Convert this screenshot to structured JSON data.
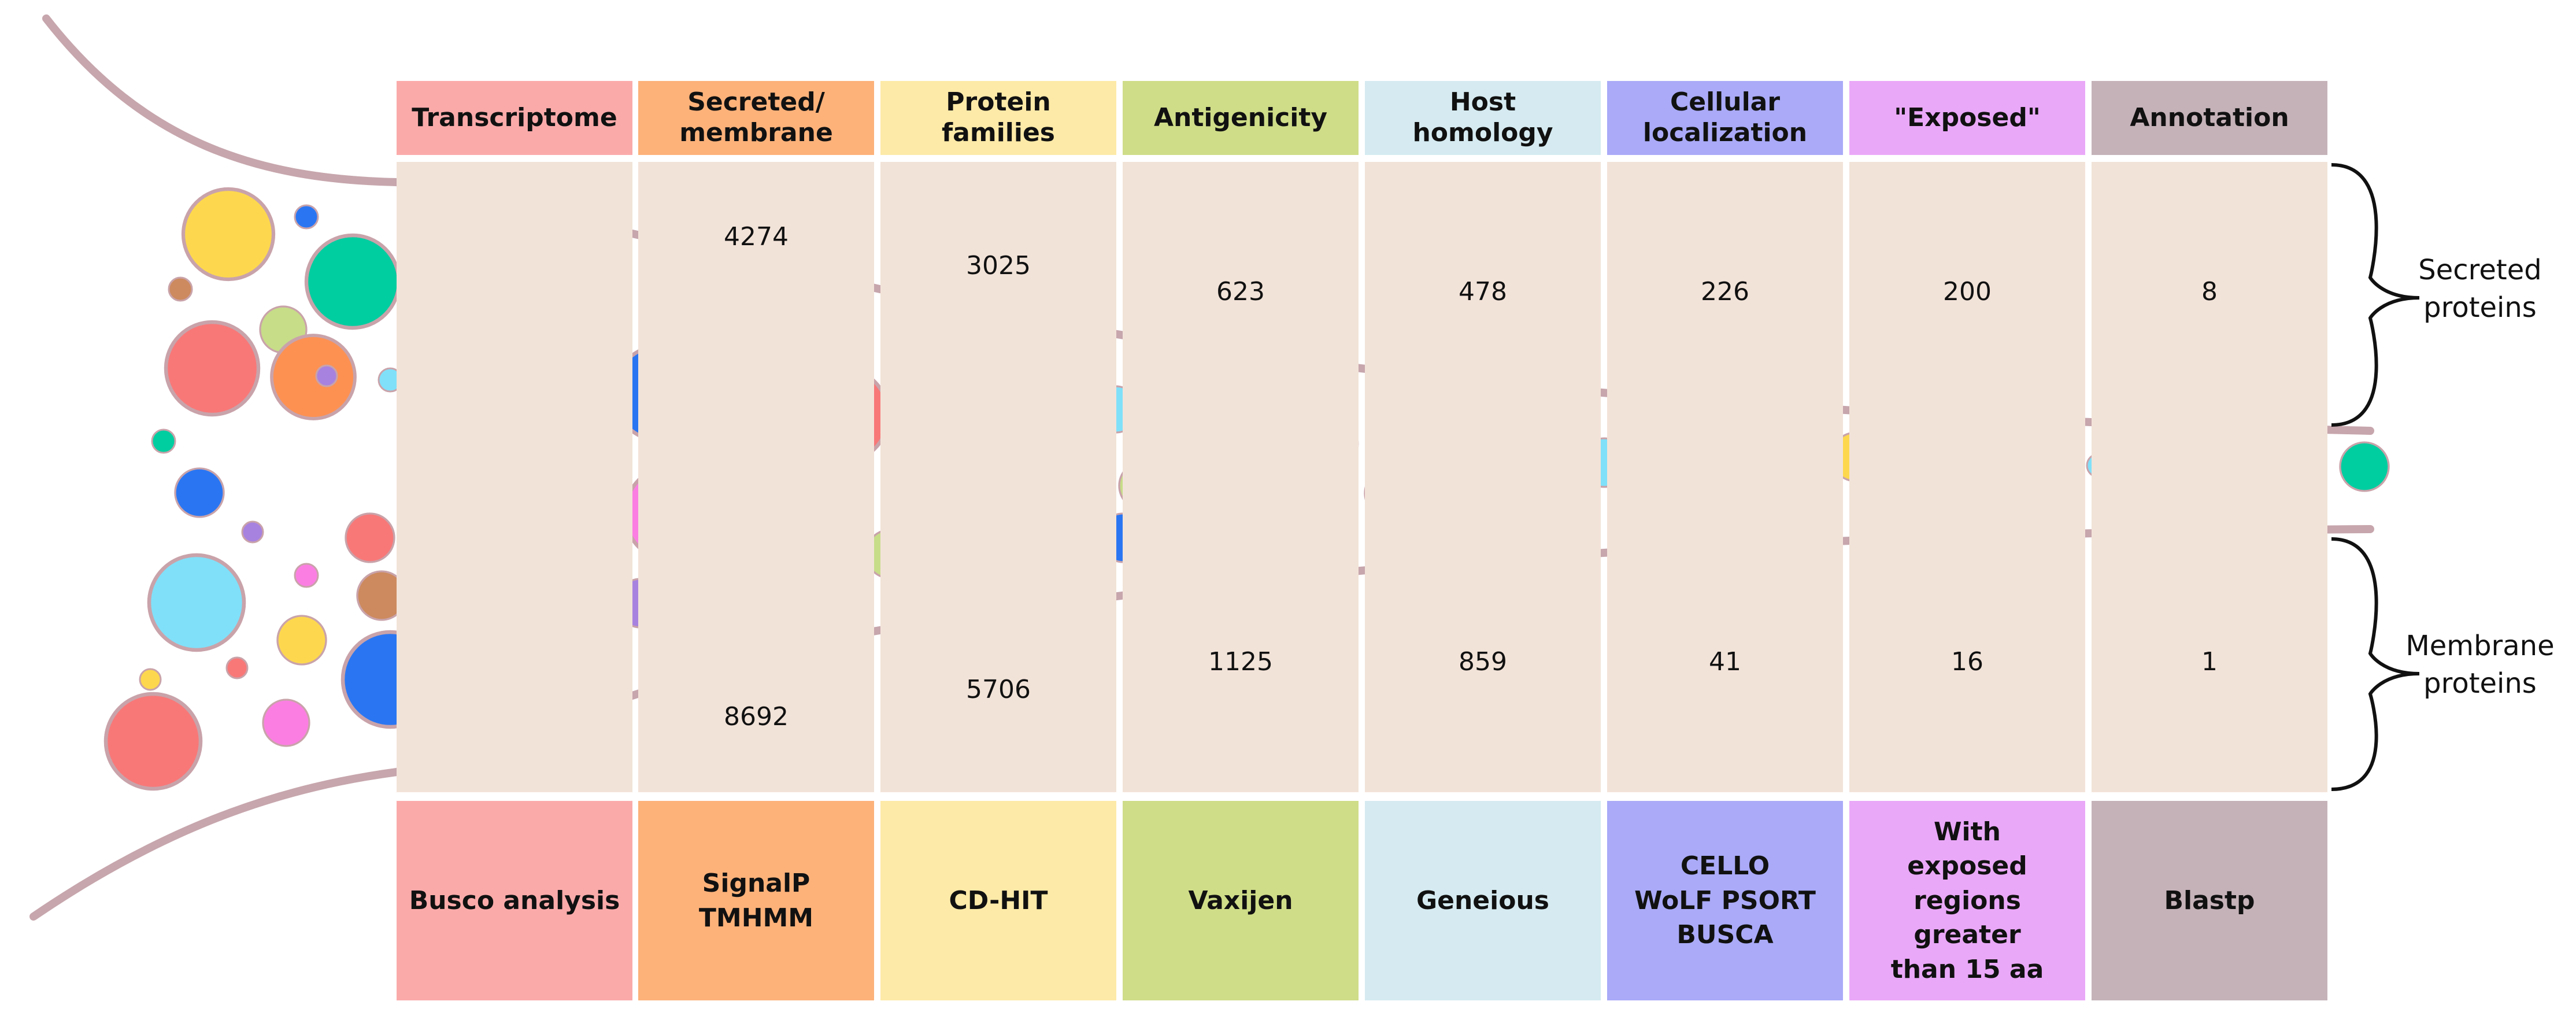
{
  "diagram": {
    "columns": [
      {
        "header": "Transcriptome",
        "tool": "Busco analysis",
        "secreted": "",
        "membrane": "",
        "color": "#fbaaaa"
      },
      {
        "header": "Secreted/\nmembrane",
        "tool": "SignalP\nTMHMM",
        "secreted": "4274",
        "membrane": "8692",
        "color": "#fdb27a"
      },
      {
        "header": "Protein\nfamilies",
        "tool": "CD-HIT",
        "secreted": "3025",
        "membrane": "5706",
        "color": "#fdeaa8"
      },
      {
        "header": "Antigenicity",
        "tool": "Vaxijen",
        "secreted": "623",
        "membrane": "1125",
        "color": "#cfdd88"
      },
      {
        "header": "Host\nhomology",
        "tool": "Geneious",
        "secreted": "478",
        "membrane": "859",
        "color": "#d5ebf1"
      },
      {
        "header": "Cellular\nlocalization",
        "tool": "CELLO\nWoLF PSORT\nBUSCA",
        "secreted": "226",
        "membrane": "41",
        "color": "#aaaaf8"
      },
      {
        "header": "\"Exposed\"",
        "tool": "With\nexposed\nregions\ngreater\nthan 15 aa",
        "secreted": "200",
        "membrane": "16",
        "color": "#eaa8f8"
      },
      {
        "header": "Annotation",
        "tool": "Blastp",
        "secreted": "8",
        "membrane": "1",
        "color": "#c5b2b8"
      }
    ],
    "brace_labels": {
      "secreted": "Secreted\nproteins",
      "membrane": "Membrane\nproteins"
    },
    "bubble_colors": {
      "red": "#f87878",
      "orange": "#fd9152",
      "yellow": "#fdd84e",
      "green": "#00cda0",
      "blue": "#2a76f2",
      "purple": "#a882df",
      "pink": "#fb7ee2",
      "cyan": "#80e0f9",
      "brown": "#cd8a5e",
      "lime": "#c7dd88"
    }
  }
}
